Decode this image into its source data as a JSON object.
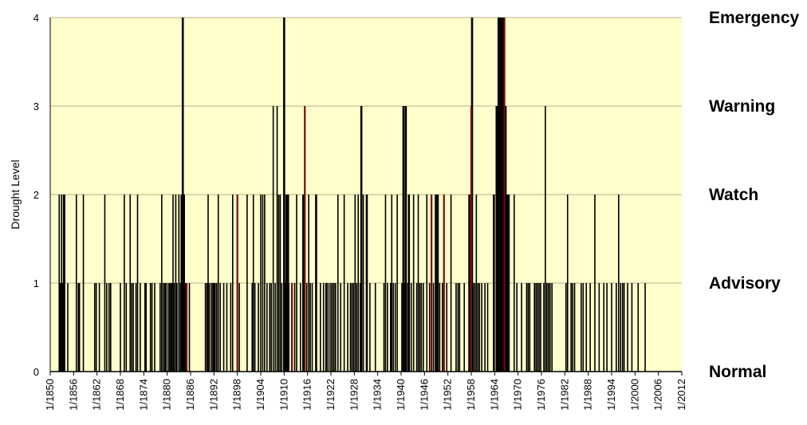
{
  "chart_data": {
    "type": "bar",
    "title": "",
    "xlabel": "",
    "ylabel": "Drought Level",
    "xlim": [
      1850,
      2012
    ],
    "ylim": [
      0,
      4
    ],
    "grid": true,
    "y_ticks": [
      "0",
      "1",
      "2",
      "3",
      "4"
    ],
    "x_ticks": [
      "1/1850",
      "1/1856",
      "1/1862",
      "1/1868",
      "1/1874",
      "1/1880",
      "1/1886",
      "1/1892",
      "1/1898",
      "1/1904",
      "1/1910",
      "1/1916",
      "1/1922",
      "1/1928",
      "1/1934",
      "1/1940",
      "1/1946",
      "1/1952",
      "1/1958",
      "1/1964",
      "1/1970",
      "1/1976",
      "1/1982",
      "1/1988",
      "1/1994",
      "1/2000",
      "1/2006",
      "1/2012"
    ],
    "level_labels": [
      "Normal",
      "Advisory",
      "Watch",
      "Warning",
      "Emergency"
    ],
    "colors": {
      "plot_bg": "#ffffcc",
      "grid": "#9a9a7a",
      "bar": "#000000",
      "bar_alt": "#7a0a0a"
    },
    "x": [
      1852.3,
      1852.6,
      1852.9,
      1853.2,
      1853.4,
      1853.7,
      1854.5,
      1856.7,
      1857.2,
      1857.5,
      1858.5,
      1861.4,
      1861.8,
      1862.6,
      1864.0,
      1864.5,
      1865.1,
      1865.5,
      1868.0,
      1869.0,
      1869.5,
      1870.5,
      1870.9,
      1871.3,
      1872.0,
      1872.4,
      1873.1,
      1874.3,
      1874.6,
      1875.7,
      1876.1,
      1876.8,
      1878.2,
      1878.6,
      1879.0,
      1879.4,
      1879.7,
      1880.2,
      1880.6,
      1880.9,
      1881.2,
      1881.5,
      1881.8,
      1882.2,
      1882.5,
      1883.0,
      1883.4,
      1884.6,
      1885.7,
      1889.8,
      1890.2,
      1890.5,
      1890.8,
      1891.3,
      1891.7,
      1892.0,
      1892.3,
      1892.7,
      1893.1,
      1893.6,
      1894.5,
      1895.3,
      1896.3,
      1896.8,
      1898.5,
      1900.5,
      1901.8,
      1902.1,
      1902.5,
      1903.4,
      1904.0,
      1904.5,
      1905.0,
      1905.6,
      1906.3,
      1906.7,
      1907.2,
      1907.7,
      1908.2,
      1908.6,
      1909.0,
      1909.4,
      1910.3,
      1911.2,
      1912.7,
      1913.2,
      1914.2,
      1914.8,
      1915.8,
      1916.3,
      1916.7,
      1917.2,
      1919.3,
      1920.1,
      1920.7,
      1921.0,
      1921.5,
      1922.0,
      1922.4,
      1922.8,
      1923.2,
      1923.8,
      1924.5,
      1925.4,
      1926.3,
      1927.0,
      1927.4,
      1927.8,
      1928.2,
      1928.6,
      1929.0,
      1929.5,
      1930.3,
      1932.0,
      1933.4,
      1935.6,
      1936.0,
      1936.5,
      1937.3,
      1937.6,
      1938.0,
      1938.5,
      1939.0,
      1940.2,
      1941.0,
      1941.4,
      1941.8,
      1942.6,
      1943.2,
      1944.0,
      1944.4,
      1944.8,
      1945.2,
      1945.7,
      1946.6,
      1947.3,
      1948.3,
      1949.9,
      1950.6,
      1951.7,
      1952.8,
      1954.1,
      1954.6,
      1955.0,
      1956.2,
      1958.5,
      1958.9,
      1959.3,
      1959.7,
      1960.1,
      1960.7,
      1961.5,
      1962.2,
      1969.0,
      1969.7,
      1970.9,
      1972.2,
      1972.6,
      1973.0,
      1974.2,
      1974.6,
      1975.0,
      1975.4,
      1975.8,
      1976.6,
      1977.0,
      1977.4,
      1977.8,
      1978.2,
      1978.7,
      1982.3,
      1982.7,
      1983.6,
      1984.0,
      1984.5,
      1986.2,
      1986.7,
      1987.5,
      1988.5,
      1989.7,
      1990.8,
      1992.0,
      1992.8,
      1994.0,
      1995.2,
      1995.8,
      1996.3,
      1996.8,
      1997.2,
      1998.1,
      1999.2,
      2000.8,
      2002.6
    ],
    "values": [
      2,
      1,
      2,
      1,
      2,
      2,
      1,
      2,
      1,
      1,
      2,
      1,
      1,
      1,
      2,
      1,
      1,
      1,
      1,
      2,
      1,
      2,
      1,
      1,
      1,
      2,
      1,
      1,
      1,
      1,
      1,
      1,
      1,
      2,
      1,
      1,
      1,
      1,
      1,
      1,
      1,
      2,
      1,
      2,
      1,
      2,
      1,
      1,
      1,
      1,
      1,
      2,
      1,
      1,
      1,
      1,
      1,
      1,
      2,
      1,
      1,
      1,
      1,
      2,
      1,
      2,
      1,
      2,
      1,
      1,
      2,
      2,
      2,
      1,
      1,
      1,
      3,
      1,
      3,
      2,
      2,
      1,
      1,
      1,
      1,
      2,
      1,
      2,
      1,
      2,
      1,
      1,
      1,
      1,
      1,
      1,
      1,
      1,
      1,
      1,
      1,
      2,
      1,
      2,
      1,
      1,
      1,
      1,
      2,
      1,
      2,
      1,
      2,
      1,
      1,
      1,
      2,
      1,
      1,
      2,
      1,
      1,
      2,
      1,
      1,
      1,
      1,
      1,
      2,
      1,
      2,
      1,
      1,
      1,
      2,
      1,
      1,
      1,
      1,
      1,
      2,
      1,
      1,
      1,
      1,
      1,
      1,
      2,
      1,
      1,
      1,
      1,
      1,
      2,
      1,
      1,
      1,
      1,
      1,
      1,
      1,
      1,
      1,
      1,
      1,
      3,
      1,
      1,
      1,
      1,
      1,
      2,
      1,
      1,
      1,
      1,
      1,
      1,
      1,
      2,
      1,
      1,
      1,
      1,
      1,
      2,
      1,
      1,
      1,
      1,
      1,
      1,
      1
    ],
    "x_red": [
      1885.0,
      1898.0,
      1912.0,
      1915.3,
      1947.8,
      1951.0,
      1958.0,
      1966.5
    ],
    "values_red": [
      1,
      2,
      1,
      3,
      2,
      2,
      3,
      4
    ],
    "x_block": [
      1883.7,
      1884.0,
      1884.3,
      1910.0,
      1910.6,
      1911.0,
      1915.0,
      1918.2,
      1929.8,
      1931.2,
      1940.6,
      1941.2,
      1942.0,
      1948.9,
      1949.4,
      1957.5,
      1958.2,
      1963.8,
      1964.5,
      1965.0,
      1965.4,
      1965.7,
      1966.0,
      1966.3,
      1966.8,
      1967.2,
      1967.6
    ],
    "values_block": [
      2,
      4,
      2,
      4,
      2,
      2,
      2,
      2,
      3,
      2,
      3,
      3,
      2,
      2,
      2,
      2,
      4,
      2,
      3,
      4,
      4,
      4,
      4,
      4,
      3,
      2,
      2
    ]
  }
}
